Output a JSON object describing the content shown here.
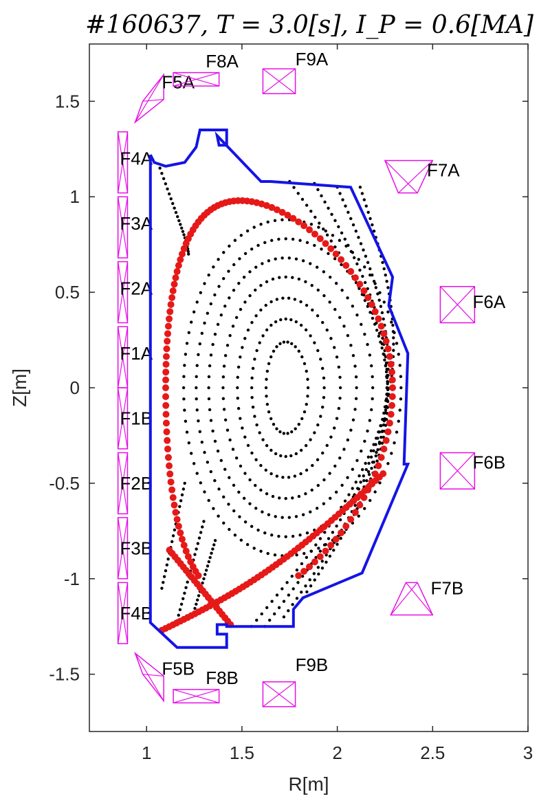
{
  "chart_data": {
    "type": "scatter",
    "title": "#160637, T = 3.0[s], I_P = 0.6[MA]",
    "xlabel": "R[m]",
    "ylabel": "Z[m]",
    "xlim": [
      0.7,
      3.0
    ],
    "ylim": [
      -1.8,
      1.8
    ],
    "xticks": [
      "1",
      "1.5",
      "2",
      "2.5",
      "3"
    ],
    "yticks": [
      "1.5",
      "1",
      "0.5",
      "0",
      "-0.5",
      "-1",
      "-1.5"
    ],
    "grid": false,
    "colors": {
      "wall": "#1414e6",
      "separatrix": "#e61919",
      "flux_surfaces": "#000000",
      "coils": "#e60fe6"
    },
    "wall": [
      [
        1.02,
        1.22
      ],
      [
        1.02,
        -1.23
      ],
      [
        1.16,
        -1.36
      ],
      [
        1.42,
        -1.36
      ],
      [
        1.42,
        -1.29
      ],
      [
        1.37,
        -1.29
      ],
      [
        1.37,
        -1.24
      ],
      [
        1.42,
        -1.24
      ],
      [
        1.42,
        -1.25
      ],
      [
        1.77,
        -1.25
      ],
      [
        1.77,
        -1.16
      ],
      [
        1.82,
        -1.1
      ],
      [
        2.13,
        -0.97
      ],
      [
        2.37,
        -0.4
      ],
      [
        2.35,
        -0.4
      ],
      [
        2.37,
        0.18
      ],
      [
        2.27,
        0.43
      ],
      [
        2.29,
        0.58
      ],
      [
        2.07,
        1.05
      ],
      [
        1.65,
        1.08
      ],
      [
        1.6,
        1.08
      ],
      [
        1.37,
        1.32
      ],
      [
        1.38,
        1.27
      ],
      [
        1.42,
        1.27
      ],
      [
        1.42,
        1.35
      ],
      [
        1.28,
        1.35
      ],
      [
        1.26,
        1.26
      ],
      [
        1.2,
        1.18
      ],
      [
        1.1,
        1.16
      ],
      [
        1.04,
        1.18
      ],
      [
        1.02,
        1.22
      ]
    ],
    "axis": [
      1.73,
      0.0
    ],
    "flux_surface_rx": [
      0.11,
      0.19,
      0.27,
      0.35,
      0.43,
      0.5,
      0.57
    ],
    "flux_surface_ry": [
      0.24,
      0.36,
      0.47,
      0.58,
      0.68,
      0.78,
      0.88
    ],
    "separatrix_params": {
      "r_in": 1.1,
      "r_out": 2.29,
      "z_top": 0.98,
      "r_top": 1.47,
      "x_point": [
        1.38,
        -1.11
      ]
    },
    "coils": [
      {
        "name": "F1A",
        "poly": [
          [
            0.85,
            0.0
          ],
          [
            0.9,
            0.0
          ],
          [
            0.9,
            0.32
          ],
          [
            0.85,
            0.32
          ]
        ],
        "label_at": [
          0.86,
          0.18
        ]
      },
      {
        "name": "F2A",
        "poly": [
          [
            0.85,
            0.34
          ],
          [
            0.9,
            0.34
          ],
          [
            0.9,
            0.66
          ],
          [
            0.85,
            0.66
          ]
        ],
        "label_at": [
          0.86,
          0.52
        ]
      },
      {
        "name": "F3A",
        "poly": [
          [
            0.85,
            0.68
          ],
          [
            0.9,
            0.68
          ],
          [
            0.9,
            1.0
          ],
          [
            0.85,
            1.0
          ]
        ],
        "label_at": [
          0.86,
          0.86
        ]
      },
      {
        "name": "F4A",
        "poly": [
          [
            0.85,
            1.02
          ],
          [
            0.9,
            1.02
          ],
          [
            0.9,
            1.34
          ],
          [
            0.85,
            1.34
          ]
        ],
        "label_at": [
          0.86,
          1.2
        ]
      },
      {
        "name": "F1B",
        "poly": [
          [
            0.85,
            -0.32
          ],
          [
            0.9,
            -0.32
          ],
          [
            0.9,
            0.0
          ],
          [
            0.85,
            0.0
          ]
        ],
        "label_at": [
          0.86,
          -0.16
        ]
      },
      {
        "name": "F2B",
        "poly": [
          [
            0.85,
            -0.66
          ],
          [
            0.9,
            -0.66
          ],
          [
            0.9,
            -0.34
          ],
          [
            0.85,
            -0.34
          ]
        ],
        "label_at": [
          0.86,
          -0.5
        ]
      },
      {
        "name": "F3B",
        "poly": [
          [
            0.85,
            -1.0
          ],
          [
            0.9,
            -1.0
          ],
          [
            0.9,
            -0.68
          ],
          [
            0.85,
            -0.68
          ]
        ],
        "label_at": [
          0.86,
          -0.84
        ]
      },
      {
        "name": "F4B",
        "poly": [
          [
            0.85,
            -1.34
          ],
          [
            0.9,
            -1.34
          ],
          [
            0.9,
            -1.02
          ],
          [
            0.85,
            -1.02
          ]
        ],
        "label_at": [
          0.86,
          -1.18
        ]
      },
      {
        "name": "F5A",
        "poly": [
          [
            0.94,
            1.39
          ],
          [
            0.98,
            1.5
          ],
          [
            1.09,
            1.64
          ],
          [
            1.09,
            1.51
          ]
        ],
        "label_at": [
          1.08,
          1.6
        ]
      },
      {
        "name": "F5B",
        "poly": [
          [
            0.94,
            -1.39
          ],
          [
            0.98,
            -1.5
          ],
          [
            1.09,
            -1.64
          ],
          [
            1.09,
            -1.51
          ]
        ],
        "label_at": [
          1.08,
          -1.47
        ]
      },
      {
        "name": "F8A",
        "poly": [
          [
            1.14,
            1.58
          ],
          [
            1.38,
            1.58
          ],
          [
            1.38,
            1.65
          ],
          [
            1.14,
            1.65
          ]
        ],
        "label_at": [
          1.31,
          1.71
        ]
      },
      {
        "name": "F8B",
        "poly": [
          [
            1.14,
            -1.65
          ],
          [
            1.38,
            -1.65
          ],
          [
            1.38,
            -1.58
          ],
          [
            1.14,
            -1.58
          ]
        ],
        "label_at": [
          1.31,
          -1.52
        ]
      },
      {
        "name": "F9A",
        "poly": [
          [
            1.61,
            1.54
          ],
          [
            1.78,
            1.54
          ],
          [
            1.78,
            1.67
          ],
          [
            1.61,
            1.67
          ]
        ],
        "label_at": [
          1.78,
          1.72
        ]
      },
      {
        "name": "F9B",
        "poly": [
          [
            1.61,
            -1.67
          ],
          [
            1.78,
            -1.67
          ],
          [
            1.78,
            -1.54
          ],
          [
            1.61,
            -1.54
          ]
        ],
        "label_at": [
          1.78,
          -1.45
        ]
      },
      {
        "name": "F7A",
        "poly": [
          [
            2.25,
            1.19
          ],
          [
            2.5,
            1.19
          ],
          [
            2.42,
            1.02
          ],
          [
            2.32,
            1.02
          ]
        ],
        "label_at": [
          2.47,
          1.14
        ]
      },
      {
        "name": "F7B",
        "poly": [
          [
            2.28,
            -1.19
          ],
          [
            2.5,
            -1.19
          ],
          [
            2.42,
            -1.02
          ],
          [
            2.36,
            -1.02
          ]
        ],
        "label_at": [
          2.49,
          -1.05
        ]
      },
      {
        "name": "F6A",
        "poly": [
          [
            2.54,
            0.34
          ],
          [
            2.72,
            0.34
          ],
          [
            2.72,
            0.53
          ],
          [
            2.54,
            0.53
          ]
        ],
        "label_at": [
          2.71,
          0.45
        ]
      },
      {
        "name": "F6B",
        "poly": [
          [
            2.54,
            -0.53
          ],
          [
            2.72,
            -0.53
          ],
          [
            2.72,
            -0.34
          ],
          [
            2.54,
            -0.34
          ]
        ],
        "label_at": [
          2.71,
          -0.39
        ]
      }
    ]
  }
}
